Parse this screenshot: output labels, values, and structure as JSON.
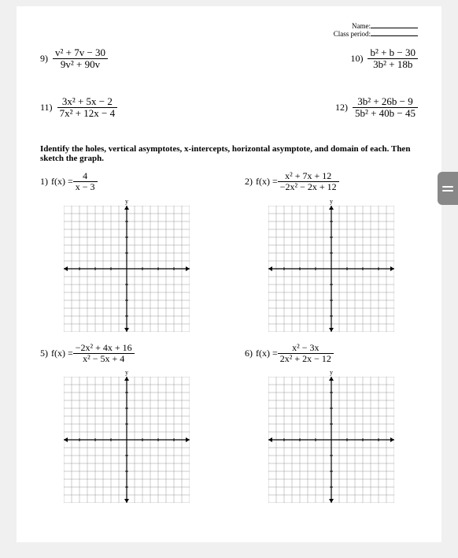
{
  "header": {
    "name_label": "Name:",
    "class_label": "Class period:"
  },
  "simplify_problems": [
    {
      "num": "9)",
      "numer": "v² + 7v − 30",
      "denom": "9v² + 90v"
    },
    {
      "num": "10)",
      "numer": "b² + b − 30",
      "denom": "3b² + 18b"
    },
    {
      "num": "11)",
      "numer": "3x² + 5x − 2",
      "denom": "7x² + 12x − 4"
    },
    {
      "num": "12)",
      "numer": "3b² + 26b − 9",
      "denom": "5b² + 40b − 45"
    }
  ],
  "instructions_text": "Identify the holes, vertical asymptotes, x-intercepts, horizontal asymptote, and domain of each. Then sketch the graph.",
  "graph_problems": [
    {
      "num": "1)",
      "lhs": "f(x) =",
      "numer": "4",
      "denom": "x − 3"
    },
    {
      "num": "2)",
      "lhs": "f(x) =",
      "numer": "x² + 7x + 12",
      "denom": "−2x² − 2x + 12"
    },
    {
      "num": "5)",
      "lhs": "f(x) =",
      "numer": "−2x² + 4x + 16",
      "denom": "x² − 5x + 4"
    },
    {
      "num": "6)",
      "lhs": "f(x) =",
      "numer": "x² − 3x",
      "denom": "2x² + 2x − 12"
    }
  ],
  "axis_label": "y",
  "grid": {
    "size": 160,
    "cells": 16,
    "line_color": "#999999",
    "axis_color": "#000000",
    "background": "#ffffff"
  }
}
